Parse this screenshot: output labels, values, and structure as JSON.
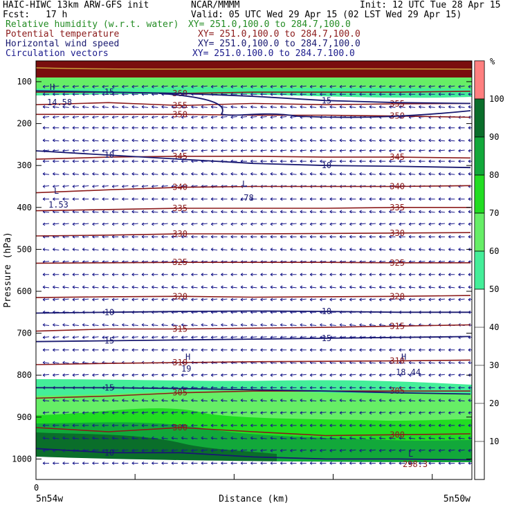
{
  "header": {
    "model": "HAIC-HIWC 13km ARW-GFS init",
    "center": "NCAR/MMMM",
    "init": "Init: 12 UTC Tue 28 Apr 15",
    "fcst_label": "Fcst:",
    "fcst_value": "17 h",
    "valid": "Valid: 05 UTC Wed 29 Apr 15 (02 LST Wed 29 Apr 15)"
  },
  "fields": [
    {
      "name": "Relative humidity (w.r.t. water)",
      "xy": "XY= 251.0,100.0 to 284.7,100.0",
      "color": "#228b22"
    },
    {
      "name": "Potential temperature",
      "xy": "XY= 251.0,100.0 to 284.7,100.0",
      "color": "#8b1a1a"
    },
    {
      "name": "Horizontal wind speed",
      "xy": "XY= 251.0,100.0 to 284.7,100.0",
      "color": "#191970"
    },
    {
      "name": "Circulation vectors",
      "xy": "XY= 251.0,100.0 to 284.7,100.0",
      "color": "#1a1a8c"
    }
  ],
  "colorbar": {
    "unit": "%",
    "ticks": [
      "10",
      "20",
      "30",
      "40",
      "50",
      "60",
      "70",
      "80",
      "90",
      "100"
    ]
  },
  "chart_data": {
    "type": "cross-section",
    "xlabel": "Distance (km)",
    "ylabel": "Pressure (hPa)",
    "x_tick_labels": [
      "0"
    ],
    "x_end_labels": [
      "5n54w",
      "5n50w"
    ],
    "y_ticks": [
      100,
      200,
      300,
      400,
      500,
      600,
      700,
      800,
      900,
      1000
    ],
    "ylim": [
      1050,
      80
    ],
    "theta_contours": [
      {
        "value": 360,
        "labels": [
          "360"
        ],
        "p": [
          125,
          125,
          128,
          125,
          125,
          125,
          123
        ]
      },
      {
        "value": 355,
        "labels": [
          "355",
          "355"
        ],
        "p": [
          155,
          150,
          157,
          152,
          155,
          153,
          152
        ]
      },
      {
        "value": 350,
        "labels": [
          "350",
          "350"
        ],
        "p": [
          178,
          178,
          178,
          180,
          180,
          182,
          185
        ]
      },
      {
        "value": 345,
        "labels": [
          "345",
          "345"
        ],
        "p": [
          285,
          280,
          278,
          278,
          280,
          280,
          282
        ]
      },
      {
        "value": 340,
        "labels": [
          "340",
          "340"
        ],
        "p": [
          365,
          358,
          352,
          350,
          350,
          350,
          348
        ]
      },
      {
        "value": 335,
        "labels": [
          "335",
          "335"
        ],
        "p": [
          408,
          405,
          402,
          402,
          402,
          400,
          400
        ]
      },
      {
        "value": 330,
        "labels": [
          "330",
          "330"
        ],
        "p": [
          468,
          466,
          463,
          463,
          462,
          461,
          460
        ]
      },
      {
        "value": 325,
        "labels": [
          "325",
          "325"
        ],
        "p": [
          533,
          532,
          531,
          531,
          531,
          532,
          532
        ]
      },
      {
        "value": 320,
        "labels": [
          "320",
          "320"
        ],
        "p": [
          615,
          613,
          612,
          614,
          613,
          612,
          610
        ]
      },
      {
        "value": 315,
        "labels": [
          "315",
          "315"
        ],
        "p": [
          695,
          690,
          690,
          688,
          686,
          683,
          680
        ]
      },
      {
        "value": 310,
        "labels": [
          "310",
          "310"
        ],
        "p": [
          775,
          772,
          770,
          768,
          767,
          766,
          764
        ]
      },
      {
        "value": 305,
        "labels": [
          "305",
          "305"
        ],
        "p": [
          855,
          850,
          842,
          838,
          838,
          838,
          838
        ]
      },
      {
        "value": 300,
        "labels": [
          "300",
          "300"
        ],
        "p": [
          925,
          935,
          925,
          935,
          944,
          942,
          940
        ]
      }
    ],
    "wind_contours": [
      {
        "value": 15,
        "labels": [
          "15",
          "15"
        ],
        "p": [
          122,
          125,
          128,
          135,
          145,
          150,
          152
        ]
      },
      {
        "value": 10,
        "labels": [
          "10",
          "10"
        ],
        "p": [
          265,
          275,
          285,
          295,
          300,
          302,
          305
        ]
      },
      {
        "value": 10,
        "labels": [
          "10",
          "10"
        ],
        "p": [
          652,
          650,
          648,
          647,
          648,
          650,
          650
        ]
      },
      {
        "value": 15,
        "labels": [
          "15",
          "15"
        ],
        "p": [
          720,
          718,
          716,
          714,
          712,
          710,
          708
        ]
      },
      {
        "value": 15,
        "labels": [
          "15"
        ],
        "p": [
          830,
          830,
          832,
          835,
          838,
          842,
          845
        ]
      },
      {
        "value": 10,
        "labels": [
          "10"
        ],
        "p": [
          975,
          985,
          985,
          995,
          1000,
          1000,
          1002
        ]
      }
    ],
    "highs_lows": [
      {
        "type": "H",
        "value": "14.58"
      },
      {
        "type": "L",
        "value": "1.53"
      },
      {
        "type": "L",
        "value": ".78"
      },
      {
        "type": "H",
        "value": "19"
      },
      {
        "type": "H",
        "value": "18.44"
      },
      {
        "type": "L",
        "value": "298.3"
      }
    ],
    "rh_bands": [
      {
        "min": 50,
        "max": 60,
        "color": "#44ee99"
      },
      {
        "min": 60,
        "max": 70,
        "color": "#66ee66"
      },
      {
        "min": 70,
        "max": 80,
        "color": "#22dd22"
      },
      {
        "min": 80,
        "max": 90,
        "color": "#12a83a"
      },
      {
        "min": 90,
        "max": 100,
        "color": "#0a6e2a"
      },
      {
        "min": 100,
        "max": 110,
        "color": "#ff7f7f"
      }
    ],
    "vector_rows_hpa": [
      112,
      130,
      160,
      185,
      210,
      240,
      265,
      290,
      320,
      350,
      380,
      410,
      440,
      470,
      500,
      530,
      560,
      590,
      620,
      650,
      680,
      710,
      740,
      770,
      800,
      830,
      860,
      890,
      920,
      950,
      980,
      1010
    ]
  }
}
